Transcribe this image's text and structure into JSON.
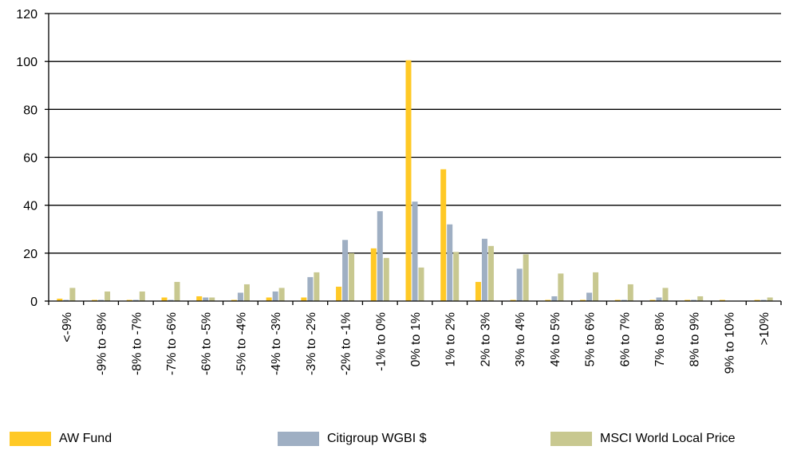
{
  "chart_data": {
    "type": "bar",
    "categories": [
      "<-9%",
      "-9% to -8%",
      "-8% to -7%",
      "-7% to -6%",
      "-6% to -5%",
      "-5% to -4%",
      "-4% to -3%",
      "-3% to -2%",
      "-2% to -1%",
      "-1% to 0%",
      "0% to 1%",
      "1% to 2%",
      "2% to 3%",
      "3% to 4%",
      "4% to 5%",
      "5% to 6%",
      "6% to 7%",
      "7% to 8%",
      "8% to 9%",
      "9% to 10%",
      ">10%"
    ],
    "series": [
      {
        "name": "AW Fund",
        "color": "#FFC926",
        "values": [
          1,
          0.5,
          0.5,
          1.5,
          2,
          0.5,
          1.5,
          1.5,
          6,
          22,
          100.5,
          55,
          8,
          0.5,
          0.5,
          0.5,
          0.5,
          0.5,
          0.5,
          0.5,
          0.5
        ]
      },
      {
        "name": "Citigroup WGBI $",
        "color": "#9FAFC3",
        "values": [
          0.5,
          0.5,
          0.5,
          0.5,
          1.5,
          3.5,
          4,
          10,
          25.5,
          37.5,
          41.5,
          32,
          26,
          13.5,
          2,
          3.5,
          0.5,
          1.5,
          0.5,
          0,
          0.5
        ]
      },
      {
        "name": "MSCI World Local Price",
        "color": "#C8C890",
        "values": [
          5.5,
          4,
          4,
          8,
          1.5,
          7,
          5.5,
          12,
          20,
          18,
          14,
          20.5,
          23,
          19.5,
          11.5,
          12,
          7,
          5.5,
          2,
          0,
          1.5
        ]
      }
    ],
    "ylim": [
      0,
      120
    ],
    "yticks": [
      0,
      20,
      40,
      60,
      80,
      100,
      120
    ],
    "grid": true,
    "legend_position": "bottom"
  }
}
